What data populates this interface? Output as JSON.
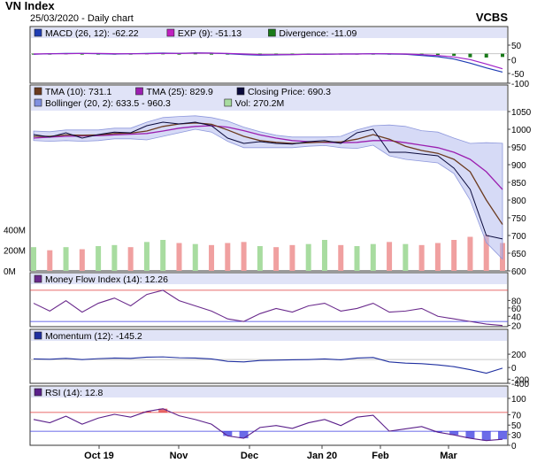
{
  "header": {
    "title": "VN Index",
    "subtitle": "25/03/2020 - Daily chart",
    "brand": "VCBS"
  },
  "x_axis": {
    "labels": [
      "Oct 19",
      "Nov",
      "Dec",
      "Jan 20",
      "Feb",
      "Mar"
    ]
  },
  "colors": {
    "panel_bg": "#ffffff",
    "band_bg": "#e0e3f7",
    "grid": "#c8c8c8",
    "macd": "#1e3cb4",
    "exp": "#a020c8",
    "divergence": "#1a7a1a",
    "tma10": "#6b3a1e",
    "tma25": "#9b1fb0",
    "close": "#0a0a3c",
    "bollinger": "#b4bcee",
    "vol_up": "#a8dca0",
    "vol_down": "#f0a0a0",
    "mfi": "#6a2a8c",
    "momentum": "#2030a0",
    "rsi": "#5a1f8a",
    "overbought": "#e03a3a",
    "oversold": "#3a3ae0"
  },
  "chart_data": [
    {
      "type": "line",
      "title": "MACD",
      "legend": [
        {
          "label": "MACD (26, 12): -62.22",
          "color": "#1e3cb4"
        },
        {
          "label": "EXP (9): -51.13",
          "color": "#c020c0"
        },
        {
          "label": "Divergence: -11.09",
          "color": "#1a7a1a"
        }
      ],
      "yticks": [
        "50",
        "0",
        "-50",
        "-100"
      ],
      "ylim": [
        -100,
        50
      ],
      "series": [
        {
          "name": "MACD (26, 12)",
          "values": [
            -2,
            0,
            1,
            1,
            0,
            -1,
            0,
            1,
            2,
            1,
            3,
            2,
            0,
            -3,
            -5,
            -4,
            -3,
            -2,
            -2,
            -1,
            -1,
            0,
            -1,
            -2,
            -6,
            -10,
            -18,
            -32,
            -48,
            -62.22
          ]
        },
        {
          "name": "EXP (9)",
          "values": [
            -1,
            0,
            0,
            1,
            1,
            0,
            0,
            0,
            1,
            1,
            2,
            2,
            1,
            -1,
            -3,
            -3,
            -3,
            -2,
            -2,
            -1,
            -1,
            0,
            0,
            -1,
            -3,
            -6,
            -11,
            -20,
            -35,
            -51.13
          ]
        },
        {
          "name": "Divergence",
          "values": [
            -1,
            0,
            1,
            0,
            -1,
            -1,
            0,
            1,
            1,
            0,
            1,
            0,
            -1,
            -2,
            -2,
            -1,
            0,
            0,
            0,
            0,
            0,
            0,
            -1,
            -1,
            -3,
            -4,
            -7,
            -12,
            -13,
            -11.09
          ]
        }
      ]
    },
    {
      "type": "line",
      "title": "Price",
      "legend": [
        {
          "label": "TMA (10): 731.1",
          "color": "#6b3a1e"
        },
        {
          "label": "TMA (25): 829.9",
          "color": "#9b1fb0"
        },
        {
          "label": "Closing Price: 690.3",
          "color": "#0a0a3c"
        },
        {
          "label": "Bollinger (20, 2): 633.5 - 960.3",
          "color": "#8090e0"
        },
        {
          "label": "Vol: 270.2M",
          "color": "#a8dca0"
        }
      ],
      "yticks": [
        "1050",
        "1000",
        "950",
        "900",
        "850",
        "800",
        "750",
        "700",
        "650",
        "600"
      ],
      "ylim": [
        600,
        1050
      ],
      "vol_ticks": [
        "400M",
        "200M",
        "0M"
      ],
      "vol_lim": [
        0,
        600
      ],
      "series": [
        {
          "name": "Closing Price",
          "values": [
            985,
            978,
            990,
            975,
            985,
            992,
            990,
            1010,
            1020,
            1015,
            1020,
            1010,
            975,
            960,
            965,
            960,
            958,
            965,
            968,
            960,
            990,
            1000,
            935,
            935,
            930,
            925,
            890,
            830,
            700,
            690.3
          ]
        },
        {
          "name": "TMA (10)",
          "values": [
            980,
            980,
            984,
            983,
            984,
            988,
            989,
            995,
            1008,
            1015,
            1018,
            1014,
            998,
            980,
            968,
            963,
            960,
            962,
            964,
            964,
            972,
            985,
            972,
            952,
            940,
            932,
            915,
            880,
            800,
            731.1
          ]
        },
        {
          "name": "TMA (25)",
          "values": [
            975,
            978,
            980,
            981,
            982,
            984,
            986,
            988,
            995,
            1003,
            1008,
            1010,
            1006,
            996,
            984,
            975,
            968,
            965,
            963,
            962,
            963,
            968,
            968,
            962,
            955,
            948,
            935,
            915,
            880,
            829.9
          ]
        },
        {
          "name": "Bollinger upper",
          "values": [
            995,
            993,
            998,
            998,
            998,
            1003,
            1003,
            1020,
            1033,
            1036,
            1038,
            1033,
            1023,
            1006,
            993,
            983,
            978,
            978,
            978,
            980,
            998,
            1010,
            1012,
            1008,
            996,
            992,
            975,
            960,
            962,
            960.3
          ]
        },
        {
          "name": "Bollinger lower",
          "values": [
            968,
            966,
            968,
            966,
            968,
            973,
            973,
            970,
            980,
            990,
            1000,
            992,
            966,
            948,
            948,
            948,
            948,
            952,
            954,
            948,
            946,
            955,
            925,
            915,
            910,
            905,
            875,
            800,
            680,
            633.5
          ]
        },
        {
          "name": "Vol",
          "values": [
            230,
            200,
            230,
            210,
            240,
            250,
            230,
            280,
            300,
            270,
            260,
            250,
            270,
            280,
            240,
            230,
            250,
            260,
            300,
            250,
            240,
            260,
            280,
            260,
            250,
            270,
            300,
            330,
            350,
            270.2
          ]
        }
      ]
    },
    {
      "type": "line",
      "title": "Money Flow Index",
      "legend": [
        {
          "label": "Money Flow Index (14): 12.26",
          "color": "#6a2a8c"
        }
      ],
      "yticks": [
        "80",
        "60",
        "40",
        "20"
      ],
      "ylim": [
        10,
        90
      ],
      "bands": [
        20,
        80
      ],
      "series": [
        {
          "name": "Money Flow Index (14)",
          "values": [
            55,
            40,
            60,
            38,
            55,
            65,
            50,
            72,
            80,
            60,
            50,
            40,
            25,
            20,
            35,
            45,
            38,
            50,
            55,
            40,
            45,
            55,
            38,
            40,
            45,
            30,
            25,
            20,
            15,
            12.26
          ]
        }
      ]
    },
    {
      "type": "line",
      "title": "Momentum",
      "legend": [
        {
          "label": "Momentum (12): -145.2",
          "color": "#2030a0"
        }
      ],
      "yticks": [
        "200",
        "0",
        "-200",
        "-400"
      ],
      "ylim": [
        -400,
        300
      ],
      "series": [
        {
          "name": "Momentum (12)",
          "values": [
            10,
            5,
            20,
            0,
            15,
            25,
            20,
            40,
            45,
            30,
            25,
            10,
            -30,
            -40,
            -15,
            -10,
            -5,
            0,
            10,
            -5,
            25,
            35,
            -40,
            -60,
            -70,
            -90,
            -120,
            -170,
            -230,
            -145.2
          ]
        }
      ]
    },
    {
      "type": "line",
      "title": "RSI",
      "legend": [
        {
          "label": "RSI (14): 12.8",
          "color": "#5a1f8a"
        }
      ],
      "yticks": [
        "100",
        "70",
        "50",
        "30",
        "0"
      ],
      "ylim": [
        0,
        100
      ],
      "bands": [
        30,
        70
      ],
      "series": [
        {
          "name": "RSI (14)",
          "values": [
            55,
            48,
            62,
            45,
            58,
            66,
            60,
            72,
            78,
            63,
            55,
            45,
            20,
            15,
            38,
            42,
            36,
            48,
            55,
            42,
            60,
            64,
            30,
            35,
            40,
            28,
            22,
            15,
            10,
            12.8
          ]
        }
      ]
    }
  ]
}
